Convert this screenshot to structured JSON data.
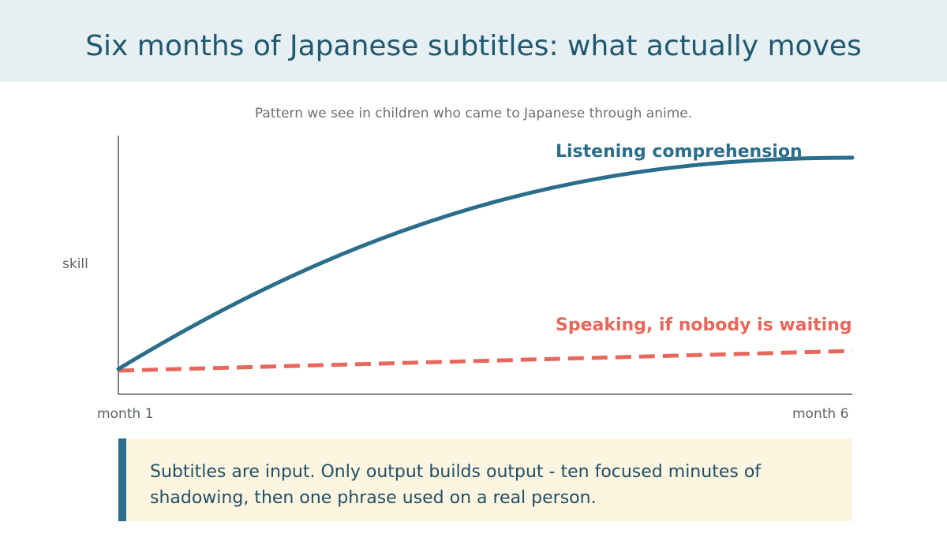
{
  "header": {
    "title": "Six months of Japanese subtitles: what actually moves",
    "subtitle": "Pattern we see in children who came to Japanese through anime."
  },
  "chart_data": {
    "type": "line",
    "xlabel": "",
    "ylabel": "skill",
    "x_range": [
      "month 1",
      "month 6"
    ],
    "x_ticks": [
      "month 1",
      "month 6"
    ],
    "y_axis_numeric_labels": false,
    "grid": false,
    "legend": "none; series labelled directly on the lines",
    "series": [
      {
        "name": "Listening comprehension",
        "style": "solid",
        "color": "#2b6e8c",
        "shape": "rises quickly, then levels off",
        "relative_level": {
          "month 1": "low",
          "month 6": "high"
        }
      },
      {
        "name": "Speaking, if nobody is waiting",
        "style": "dashed",
        "color": "#e8675b",
        "shape": "nearly flat, slight rise",
        "relative_level": {
          "month 1": "low",
          "month 6": "low"
        }
      }
    ]
  },
  "callout": {
    "text": "Subtitles are input. Only output builds output - ten focused minutes of shadowing, then one phrase used on a real person."
  },
  "colors": {
    "header_bg": "#e6f0f2",
    "title": "#1f5870",
    "listening": "#2b6e8c",
    "speaking": "#e8675b",
    "callout_bg": "#fdf5e0",
    "callout_accent": "#2b6e8c"
  }
}
